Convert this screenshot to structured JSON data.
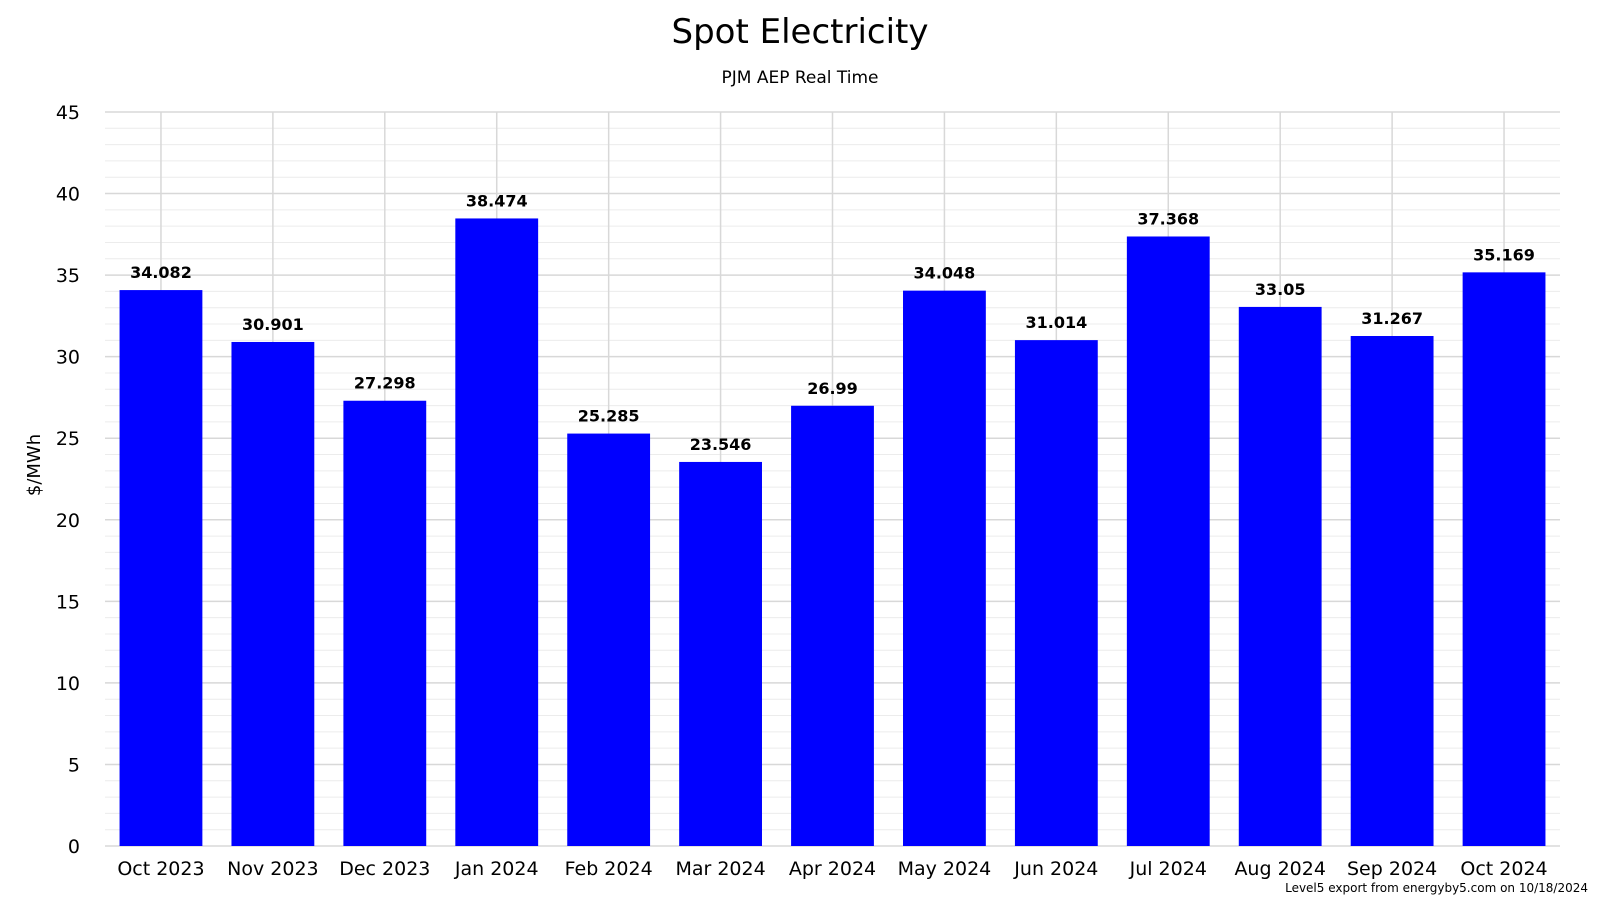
{
  "chart_data": {
    "type": "bar",
    "title": "Spot Electricity",
    "subtitle": "PJM AEP Real Time",
    "xlabel": "",
    "ylabel": "$/MWh",
    "ylim": [
      0,
      45
    ],
    "yticks": [
      0,
      5,
      10,
      15,
      20,
      25,
      30,
      35,
      40,
      45
    ],
    "grid": true,
    "legend": "none",
    "bar_color": "#0000ff",
    "categories": [
      "Oct 2023",
      "Nov 2023",
      "Dec 2023",
      "Jan 2024",
      "Feb 2024",
      "Mar 2024",
      "Apr 2024",
      "May 2024",
      "Jun 2024",
      "Jul 2024",
      "Aug 2024",
      "Sep 2024",
      "Oct 2024"
    ],
    "values": [
      34.082,
      30.901,
      27.298,
      38.474,
      25.285,
      23.546,
      26.99,
      34.048,
      31.014,
      37.368,
      33.05,
      31.267,
      35.169
    ],
    "data_labels": [
      "34.082",
      "30.901",
      "27.298",
      "38.474",
      "25.285",
      "23.546",
      "26.99",
      "34.048",
      "31.014",
      "37.368",
      "33.05",
      "31.267",
      "35.169"
    ]
  },
  "credit": "Level5 export from energyby5.com on 10/18/2024",
  "colors": {
    "bar": "#0000ff",
    "major_grid": "#d8d8d8",
    "minor_grid": "#ececec"
  }
}
